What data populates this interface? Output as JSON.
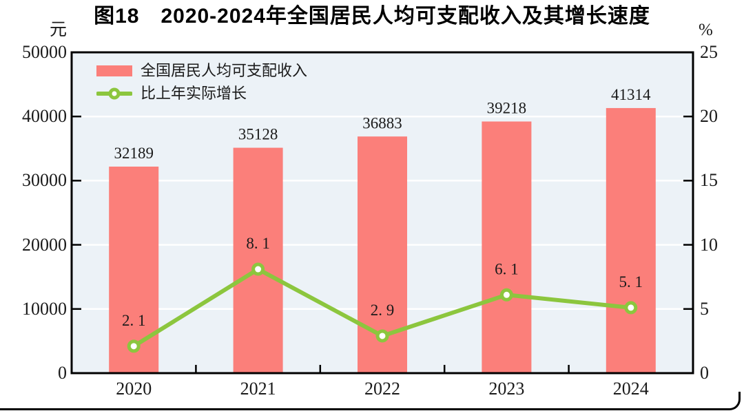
{
  "figure": {
    "title": "图18　2020-2024年全国居民人均可支配收入及其增长速度",
    "left_axis_unit": "元",
    "right_axis_unit": "%"
  },
  "legend": {
    "items": [
      {
        "label": "全国居民人均可支配收入",
        "marker": "bar-swatch"
      },
      {
        "label": "比上年实际增长",
        "marker": "line-with-circle-marker"
      }
    ]
  },
  "colors": {
    "bar": "#FB7F7A",
    "line": "#8CC63E",
    "marker_fill": "#FFFFFF",
    "plot_background": "#ECF2F7",
    "gridline": "#FFFFFF",
    "axis_border": "#000000",
    "text": "#1A1A1A"
  },
  "chart_data": {
    "type": "bar+line",
    "title": "图18　2020-2024年全国居民人均可支配收入及其增长速度",
    "categories": [
      "2020",
      "2021",
      "2022",
      "2023",
      "2024"
    ],
    "series": [
      {
        "name": "全国居民人均可支配收入",
        "type": "bar",
        "axis": "left",
        "values": [
          32189,
          35128,
          36883,
          39218,
          41314
        ]
      },
      {
        "name": "比上年实际增长",
        "type": "line",
        "axis": "right",
        "values": [
          2.1,
          8.1,
          2.9,
          6.1,
          5.1
        ],
        "labels": [
          "2. 1",
          "8. 1",
          "2. 9",
          "6. 1",
          "5. 1"
        ]
      }
    ],
    "left_axis": {
      "unit": "元",
      "min": 0,
      "max": 50000,
      "ticks": [
        0,
        10000,
        20000,
        30000,
        40000,
        50000
      ]
    },
    "right_axis": {
      "unit": "%",
      "min": 0,
      "max": 25,
      "ticks": [
        0,
        5,
        10,
        15,
        20,
        25
      ]
    },
    "grid": "horizontal-white-lines",
    "legend_position": "top-left-inside"
  }
}
